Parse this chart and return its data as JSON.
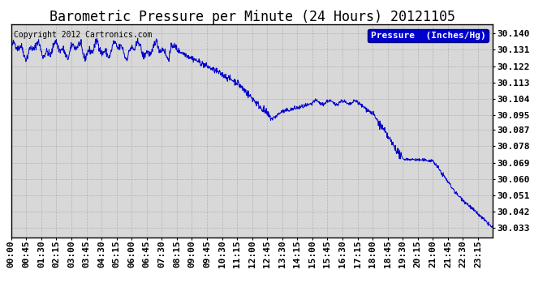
{
  "title": "Barometric Pressure per Minute (24 Hours) 20121105",
  "copyright": "Copyright 2012 Cartronics.com",
  "legend_label": "Pressure  (Inches/Hg)",
  "line_color": "#0000cc",
  "background_color": "#ffffff",
  "plot_background": "#d8d8d8",
  "grid_color": "#aaaaaa",
  "yticks": [
    30.033,
    30.042,
    30.051,
    30.06,
    30.069,
    30.078,
    30.087,
    30.095,
    30.104,
    30.113,
    30.122,
    30.131,
    30.14
  ],
  "ytick_labels": [
    "30.033",
    "30.042",
    "30.051",
    "30.060",
    "30.069",
    "30.078",
    "30.087",
    "30.095",
    "30.104",
    "30.113",
    "30.122",
    "30.131",
    "30.140"
  ],
  "ylim": [
    30.028,
    30.145
  ],
  "xtick_labels": [
    "00:00",
    "00:45",
    "01:30",
    "02:15",
    "03:00",
    "03:45",
    "04:30",
    "05:15",
    "06:00",
    "06:45",
    "07:30",
    "08:15",
    "09:00",
    "09:45",
    "10:30",
    "11:15",
    "12:00",
    "12:45",
    "13:30",
    "14:15",
    "15:00",
    "15:45",
    "16:30",
    "17:15",
    "18:00",
    "18:45",
    "19:30",
    "20:15",
    "21:00",
    "21:45",
    "22:30",
    "23:15"
  ],
  "title_fontsize": 12,
  "axis_fontsize": 8,
  "legend_fontsize": 8,
  "copyright_fontsize": 7,
  "n_points": 1440
}
